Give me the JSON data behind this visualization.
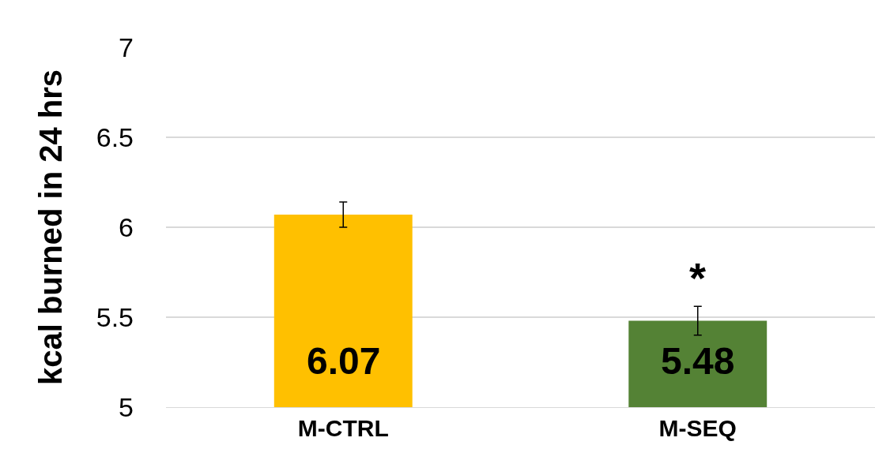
{
  "chart_data": {
    "type": "bar",
    "ylabel": "kcal burned in 24 hrs",
    "categories": [
      "M-CTRL",
      "M-SEQ"
    ],
    "values": [
      6.07,
      5.48
    ],
    "colors": [
      "#ffc000",
      "#548235"
    ],
    "errors": [
      0.07,
      0.08
    ],
    "data_labels": true,
    "annotations": [
      {
        "text": "*",
        "x": "M-SEQ",
        "y": 5.56
      }
    ],
    "ylim": [
      5,
      7
    ],
    "yticks": [
      5,
      {
        "value": 5.5,
        "label": "5.5"
      },
      6,
      {
        "value": 6.5,
        "label": "6.5"
      },
      7
    ],
    "grid": "y",
    "legend": false
  }
}
